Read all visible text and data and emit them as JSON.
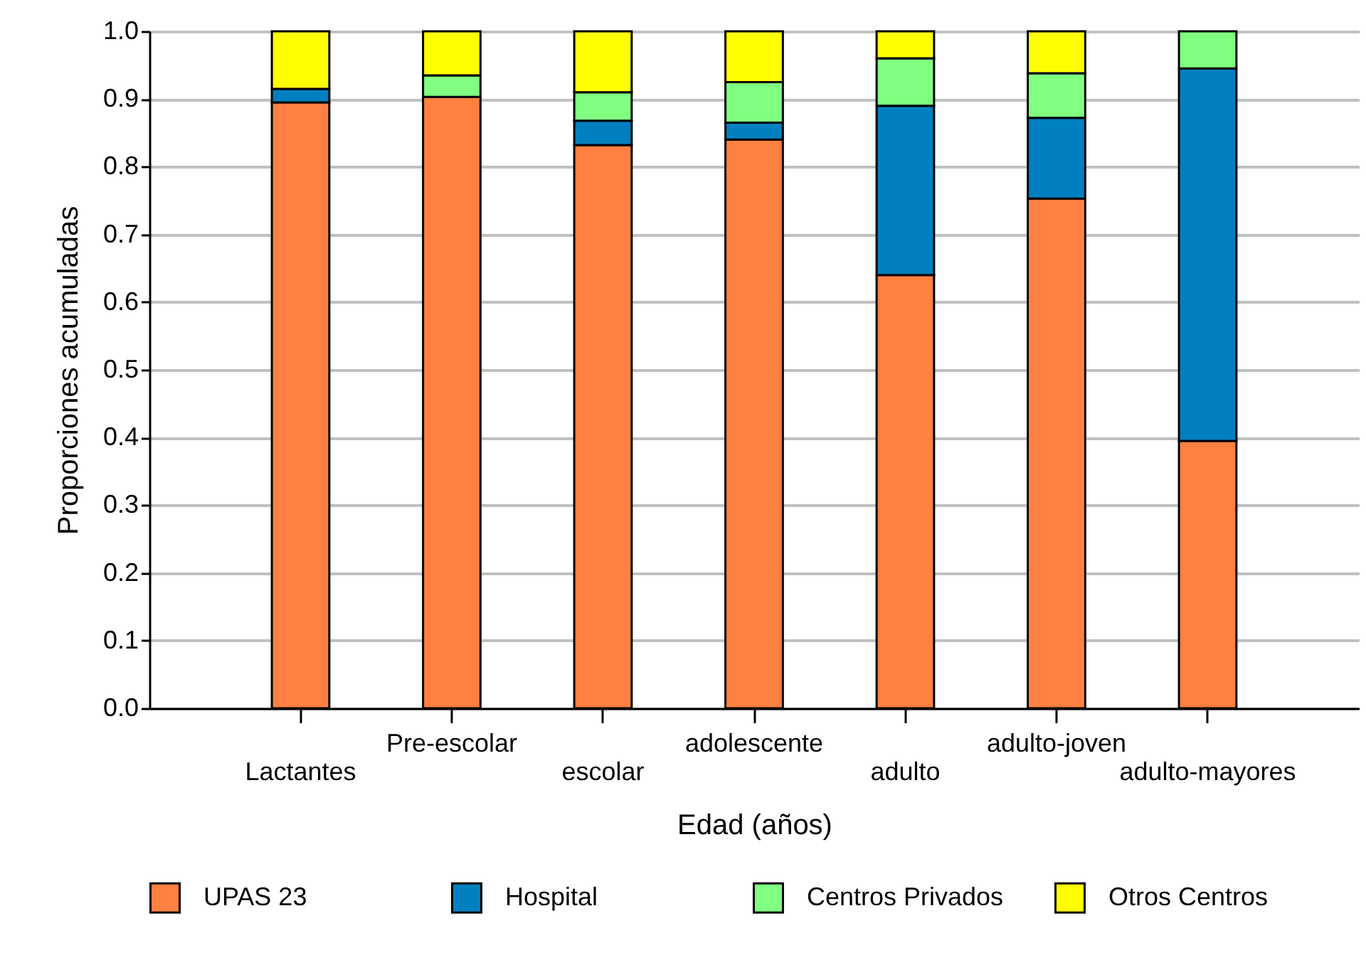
{
  "chart_data": {
    "type": "bar",
    "stacked": true,
    "xlabel": "Edad (años)",
    "ylabel": "Proporciones acumuladas",
    "categories": [
      "Lactantes",
      "Pre-escolar",
      "escolar",
      "adolescente",
      "adulto",
      "adulto-joven",
      "adulto-mayores"
    ],
    "series": [
      {
        "name": "UPAS 23",
        "color": "#ff8040",
        "values": [
          0.895,
          0.903,
          0.832,
          0.84,
          0.64,
          0.753,
          0.395
        ]
      },
      {
        "name": "Hospital",
        "color": "#0080c0",
        "values": [
          0.02,
          null,
          0.036,
          0.025,
          0.25,
          0.119,
          0.55
        ]
      },
      {
        "name": "Centros Privados",
        "color": "#80ff80",
        "values": [
          null,
          0.032,
          0.042,
          0.06,
          0.07,
          0.066,
          0.055
        ]
      },
      {
        "name": "Otros Centros",
        "color": "#ffff00",
        "values": [
          0.085,
          0.065,
          0.09,
          0.075,
          0.04,
          0.062,
          null
        ]
      }
    ],
    "ylim": [
      0,
      1
    ],
    "yticks": [
      {
        "value": 0,
        "label": "0.0"
      },
      0.1,
      0.2,
      0.3,
      0.4,
      0.5,
      0.6,
      0.7,
      0.8,
      0.9,
      {
        "value": 1,
        "label": "1.0"
      }
    ],
    "grid": "y",
    "legend": "bottom"
  }
}
